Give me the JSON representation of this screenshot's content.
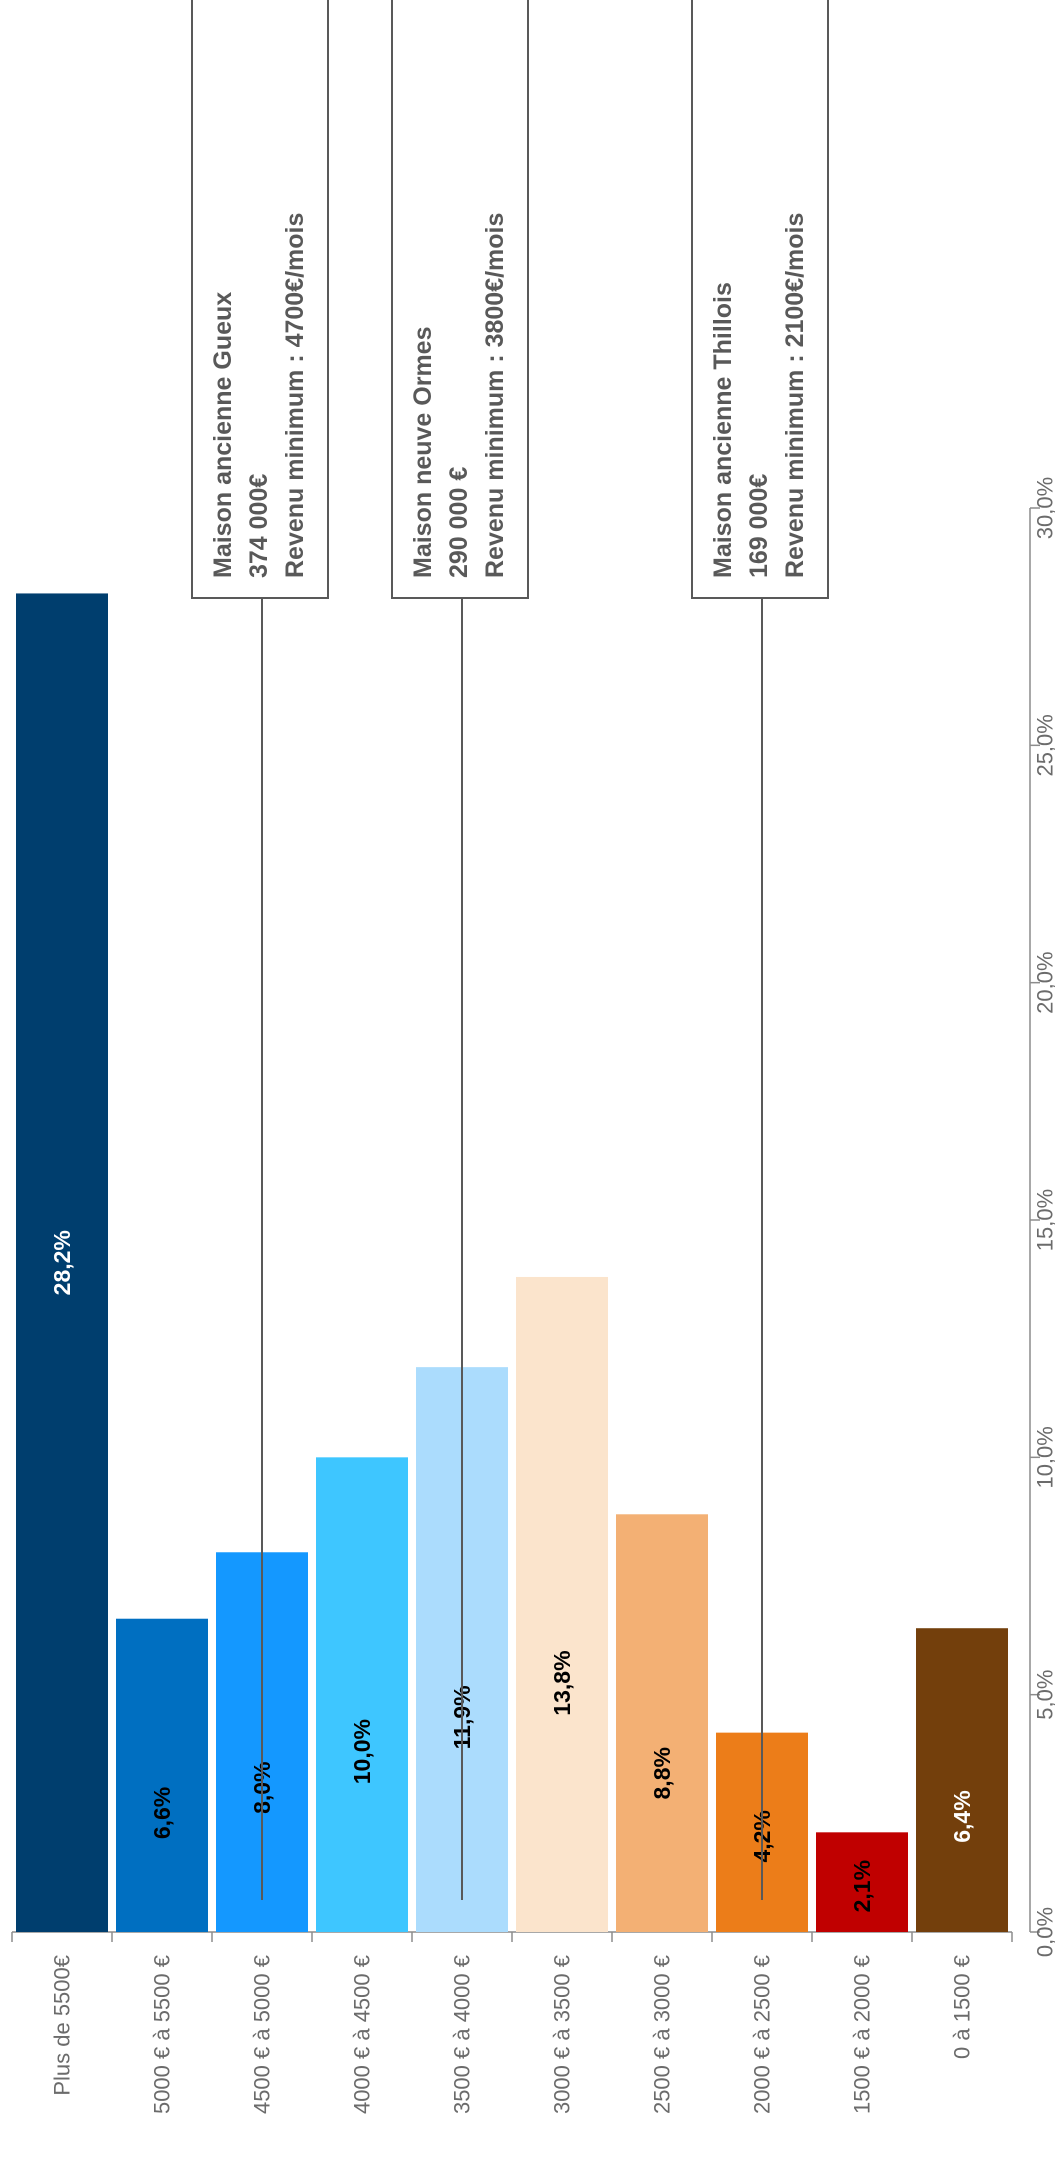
{
  "chart_data": {
    "type": "bar",
    "orientation": "horizontal",
    "rotated": "90deg clockwise",
    "categories": [
      "Plus de 5500€",
      "5000 € à 5500 €",
      "4500 € à 5000 €",
      "4000 € à 4500 €",
      "3500 € à 4000 €",
      "3000 € à 3500 €",
      "2500 € à 3000 €",
      "2000 € à 2500 €",
      "1500 € à 2000 €",
      "0 à 1500 €"
    ],
    "values": [
      28.2,
      6.6,
      8.0,
      10.0,
      11.9,
      13.8,
      8.8,
      4.2,
      2.1,
      6.4
    ],
    "data_labels": [
      "28,2%",
      "6,6%",
      "8,0%",
      "10,0%",
      "11,9%",
      "13,8%",
      "8,8%",
      "4,2%",
      "2,1%",
      "6,4%"
    ],
    "colors": [
      "#003e6e",
      "#006fc1",
      "#1498ff",
      "#3ec6ff",
      "#abdcfd",
      "#fbe4cc",
      "#f3b074",
      "#ec7d19",
      "#c00000",
      "#733f0c"
    ],
    "label_colors": [
      "#ffffff",
      "#000000",
      "#000000",
      "#000000",
      "#000000",
      "#000000",
      "#000000",
      "#000000",
      "#000000",
      "#ffffff"
    ],
    "xlim": [
      0,
      30
    ],
    "ticks": [
      0,
      5,
      10,
      15,
      20,
      25,
      30
    ],
    "tick_labels": [
      "0,0%",
      "5,0%",
      "10,0%",
      "15,0%",
      "20,0%",
      "25,0%",
      "30,0%"
    ],
    "grid": false,
    "annotations": [
      {
        "category_index": 2,
        "lines": [
          "Maison ancienne Gueux",
          "374 000€",
          "Revenu minimum : 4700€/mois"
        ]
      },
      {
        "category_index": 4,
        "lines": [
          "Maison neuve Ormes",
          "290 000 €",
          "Revenu minimum : 3800€/mois"
        ]
      },
      {
        "category_index": 7,
        "lines": [
          "Maison ancienne Thillois",
          "169 000€",
          "Revenu minimum : 2100€/mois"
        ]
      }
    ]
  }
}
